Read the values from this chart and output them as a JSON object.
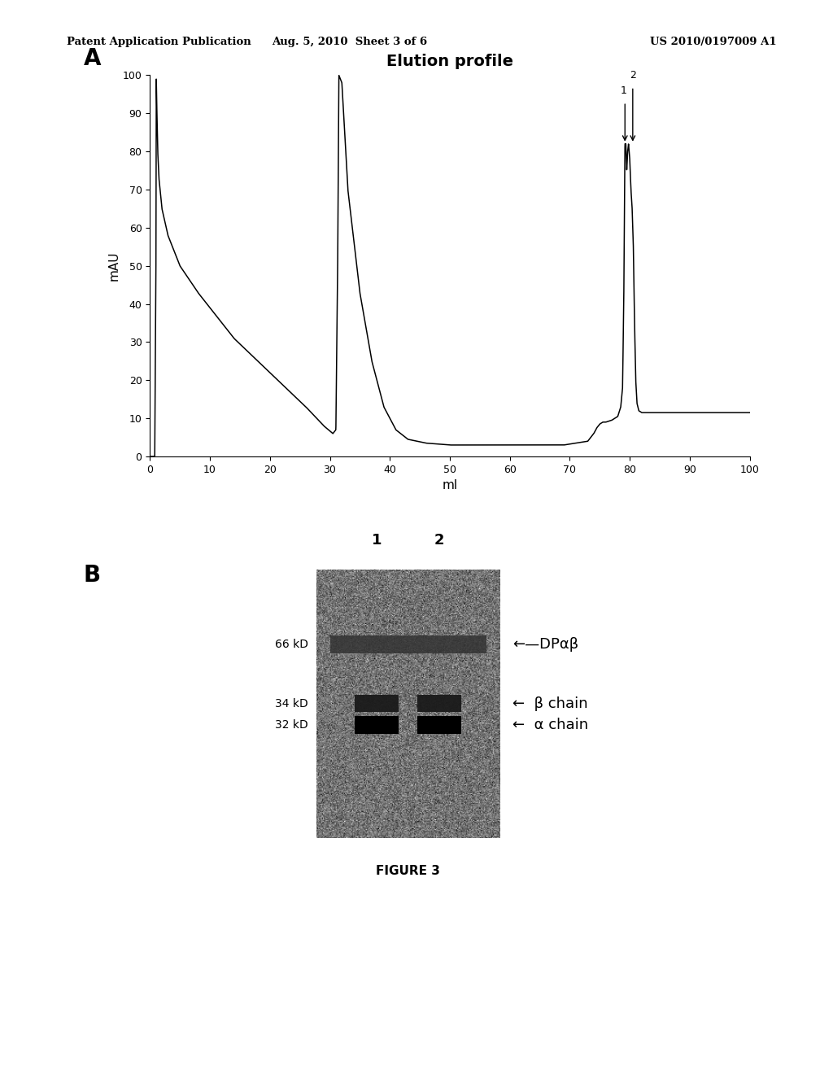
{
  "header_left": "Patent Application Publication",
  "header_mid": "Aug. 5, 2010  Sheet 3 of 6",
  "header_right": "US 2010/0197009 A1",
  "panel_A_label": "A",
  "panel_B_label": "B",
  "elution_title": "Elution profile",
  "xlabel": "ml",
  "ylabel": "mAU",
  "xlim": [
    0,
    100
  ],
  "ylim": [
    0,
    100
  ],
  "xticks": [
    0,
    10,
    20,
    30,
    40,
    50,
    60,
    70,
    80,
    90,
    100
  ],
  "yticks": [
    0,
    10,
    20,
    30,
    40,
    50,
    60,
    70,
    80,
    90,
    100
  ],
  "figure_label": "FIGURE 3",
  "background_color": "#ffffff",
  "line_color": "#000000",
  "gel_lane1_label": "1",
  "gel_lane2_label": "2",
  "mw_66": "66 kD",
  "mw_34": "34 kD",
  "mw_32": "32 kD",
  "ann_dpab": "←—DPαβ",
  "ann_beta": "←  β chain",
  "ann_alpha": "←  α chain"
}
